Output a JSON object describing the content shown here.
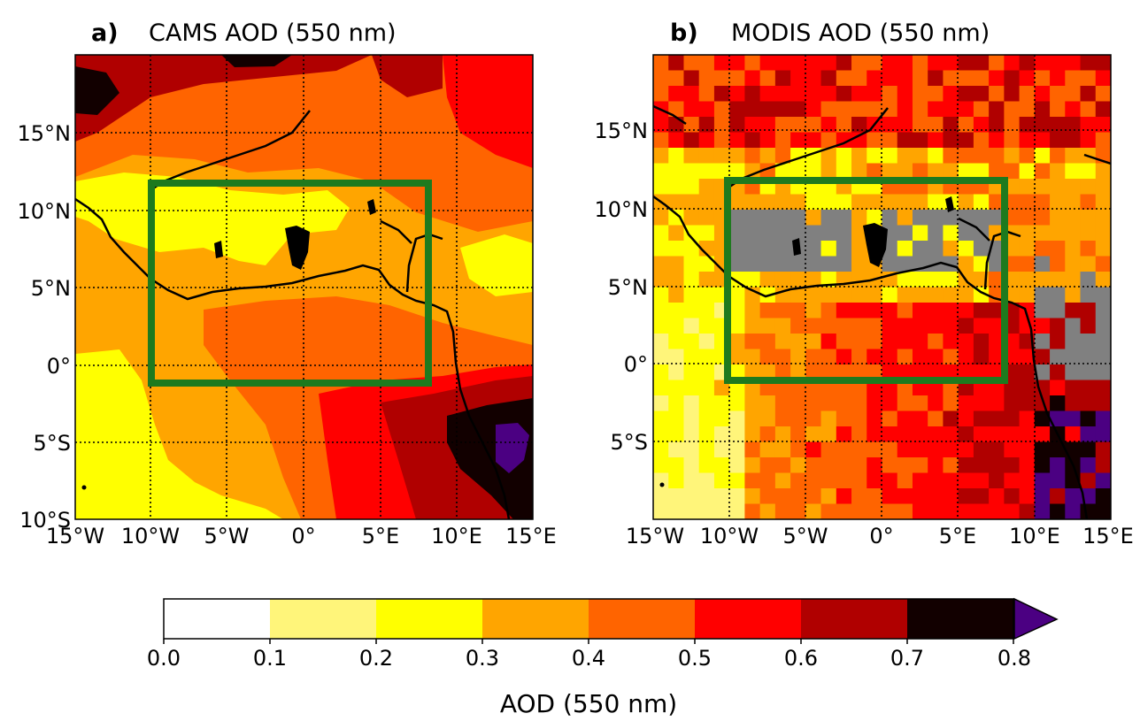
{
  "panels": [
    {
      "id": "a",
      "letter": "a)",
      "title": "CAMS AOD (550 nm)",
      "lat_ticks": [
        "15°N",
        "10°N",
        "5°N",
        "0°",
        "5°S",
        "10°S"
      ],
      "lon_ticks": [
        "15°W",
        "10°W",
        "5°W",
        "0°",
        "5°E",
        "10°E",
        "15°E"
      ],
      "extent": {
        "lon": [
          -15,
          15
        ],
        "lat": [
          -10,
          20
        ]
      },
      "box": {
        "lon": [
          -10,
          8
        ],
        "lat": [
          -1,
          12
        ]
      }
    },
    {
      "id": "b",
      "letter": "b)",
      "title": "MODIS AOD (550 nm)",
      "lat_ticks": [
        "15°N",
        "10°N",
        "5°N",
        "0°",
        "5°S"
      ],
      "lon_ticks": [
        "15°W",
        "10°W",
        "5°W",
        "0°",
        "5°E",
        "10°E",
        "15°E"
      ],
      "extent": {
        "lon": [
          -15,
          15
        ],
        "lat": [
          -10,
          20
        ]
      },
      "box": {
        "lon": [
          -10,
          8
        ],
        "lat": [
          -1,
          12
        ]
      }
    }
  ],
  "colorbar": {
    "label": "AOD (550 nm)",
    "ticks": [
      "0.0",
      "0.1",
      "0.2",
      "0.3",
      "0.4",
      "0.5",
      "0.6",
      "0.7",
      "0.8"
    ],
    "colors": [
      "#ffffff",
      "#fff57a",
      "#ffff00",
      "#ffa500",
      "#ff6400",
      "#ff0000",
      "#b00000",
      "#120000"
    ],
    "extend_color": "#4b0082",
    "extend": "max"
  },
  "colors": {
    "box": "#1e7a1e",
    "missing": "#808080",
    "coast": "#000000"
  }
}
